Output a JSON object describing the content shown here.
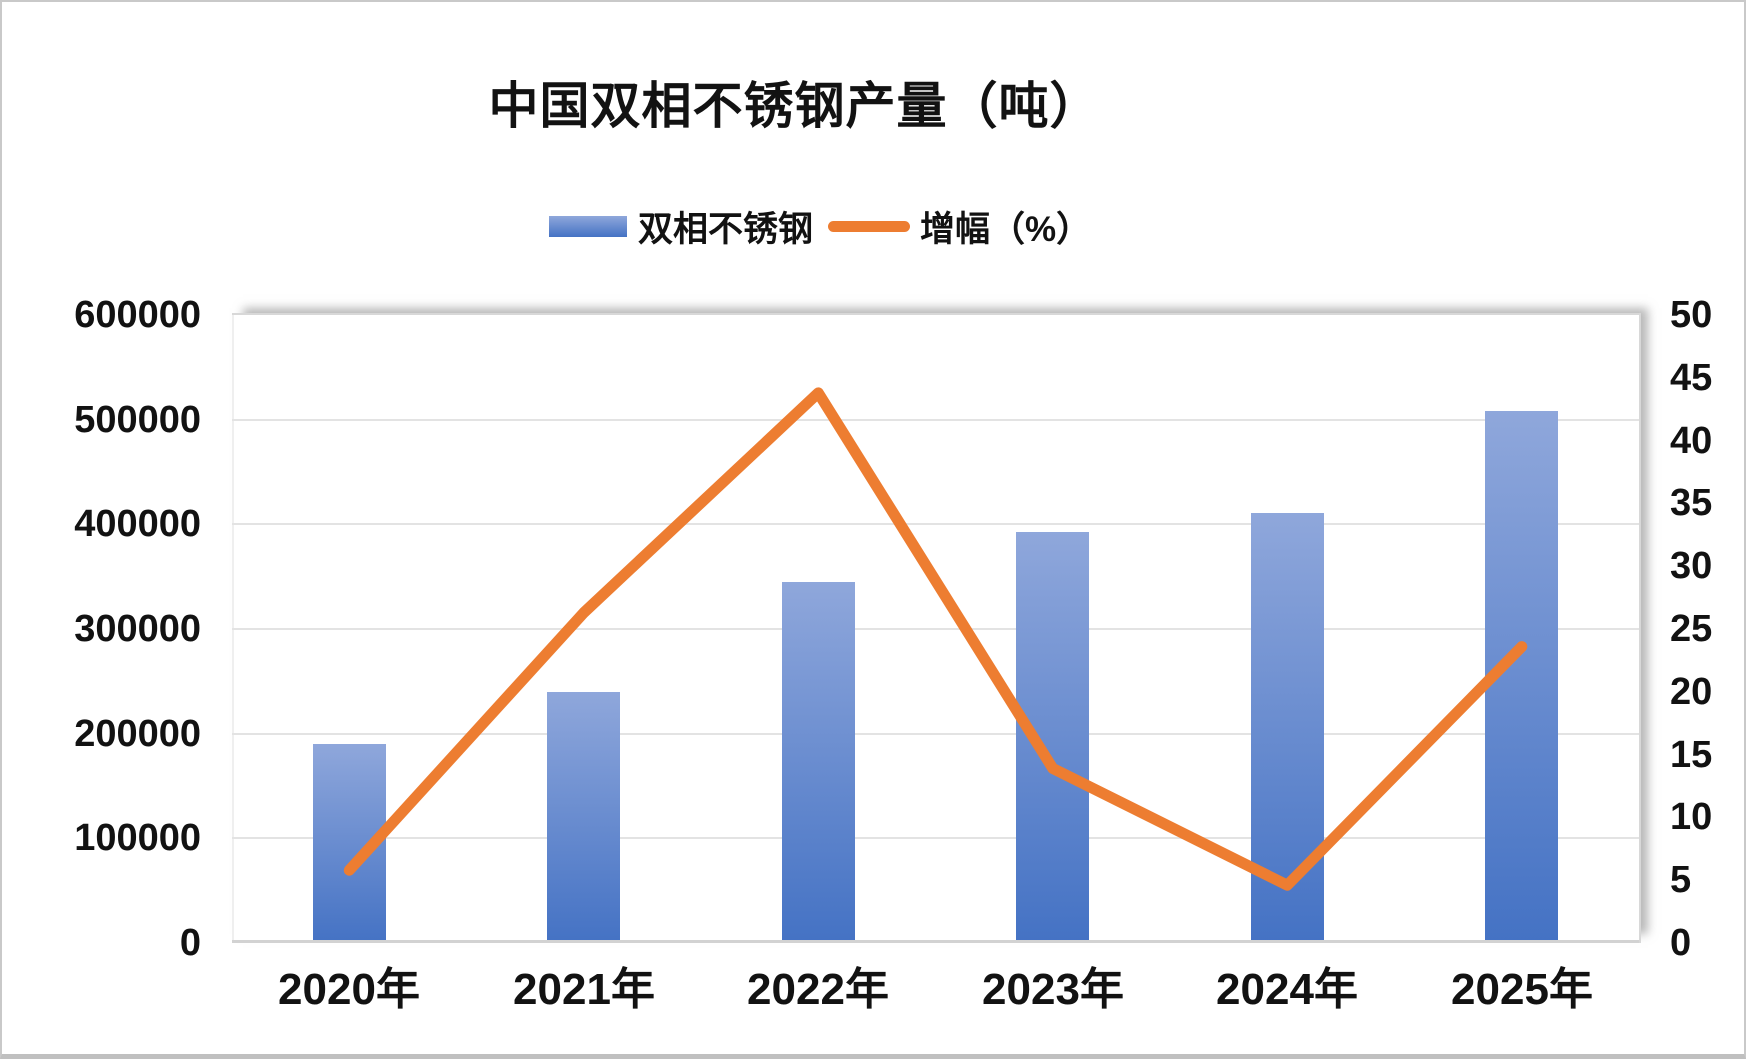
{
  "title": "中国双相不锈钢产量（吨）",
  "legend": {
    "bar_label": "双相不锈钢",
    "line_label": "增幅（%）"
  },
  "chart_data": {
    "type": "combo-bar-line",
    "title": "中国双相不锈钢产量（吨）",
    "categories": [
      "2020年",
      "2021年",
      "2022年",
      "2023年",
      "2024年",
      "2025年"
    ],
    "series": [
      {
        "name": "双相不锈钢",
        "type": "bar",
        "y_axis": "left",
        "values": [
          190000,
          240000,
          345000,
          393000,
          411000,
          508000
        ]
      },
      {
        "name": "增幅（%）",
        "type": "line",
        "y_axis": "right",
        "values": [
          5.8,
          26.3,
          43.8,
          13.9,
          4.6,
          23.6
        ]
      }
    ],
    "left_axis": {
      "min": 0,
      "max": 600000,
      "step": 100000,
      "tick_labels": [
        "600000",
        "500000",
        "400000",
        "300000",
        "200000",
        "100000",
        "0"
      ]
    },
    "right_axis": {
      "min": 0,
      "max": 50,
      "step": 5,
      "tick_labels": [
        "50",
        "45",
        "40",
        "35",
        "30",
        "25",
        "20",
        "15",
        "10",
        "5",
        "0"
      ]
    },
    "grid": true,
    "legend_position": "top-center"
  },
  "colors": {
    "bar_gradient_top": "#8FA7DB",
    "bar_gradient_bottom": "#4472C4",
    "line": "#ED7D31",
    "gridline": "#E3E3E3",
    "axis_line": "#D2D2D2",
    "plot_border": "#D8D8D8",
    "text": "#121212"
  }
}
